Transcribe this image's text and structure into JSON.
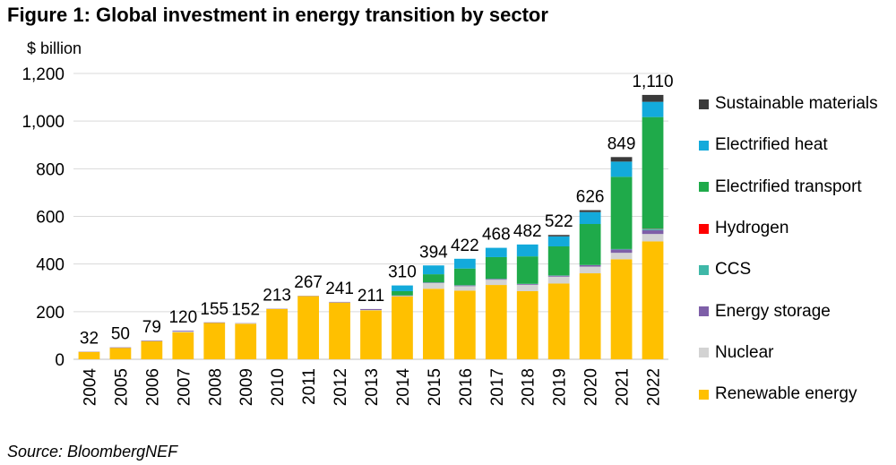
{
  "figure_title": "Figure 1: Global investment in energy transition by sector",
  "unit_label": "$ billion",
  "source": "Source: BloombergNEF",
  "colors": {
    "renewable": "#FFC000",
    "nuclear": "#D3D3D3",
    "storage": "#7E5FA8",
    "ccs": "#3FB8A8",
    "hydrogen": "#FF0000",
    "transport": "#1FAA4A",
    "heat": "#13AADB",
    "materials": "#3A3A3A"
  },
  "chart_data": {
    "type": "bar",
    "stacked": true,
    "title": "Figure 1: Global investment in energy transition by sector",
    "ylabel": "$ billion",
    "xlabel": "",
    "ylim": [
      0,
      1200
    ],
    "yticks": [
      0,
      200,
      400,
      600,
      800,
      1000,
      1200
    ],
    "ytick_labels": [
      "0",
      "200",
      "400",
      "600",
      "800",
      "1,000",
      "1,200"
    ],
    "grid": "horizontal",
    "legend_position": "right",
    "categories": [
      "2004",
      "2005",
      "2006",
      "2007",
      "2008",
      "2009",
      "2010",
      "2011",
      "2012",
      "2013",
      "2014",
      "2015",
      "2016",
      "2017",
      "2018",
      "2019",
      "2020",
      "2021",
      "2022"
    ],
    "totals": [
      32,
      50,
      79,
      120,
      155,
      152,
      213,
      267,
      241,
      211,
      310,
      394,
      422,
      468,
      482,
      522,
      626,
      849,
      1110
    ],
    "total_labels": [
      "32",
      "50",
      "79",
      "120",
      "155",
      "152",
      "213",
      "267",
      "241",
      "211",
      "310",
      "394",
      "422",
      "468",
      "482",
      "522",
      "626",
      "849",
      "1,110"
    ],
    "series": [
      {
        "name": "Renewable energy",
        "color_key": "renewable",
        "values": [
          31,
          48,
          76,
          113,
          153,
          149,
          211,
          265,
          238,
          205,
          264,
          296,
          288,
          312,
          286,
          318,
          361,
          420,
          495
        ]
      },
      {
        "name": "Nuclear",
        "color_key": "nuclear",
        "values": [
          0,
          0,
          1,
          4,
          0,
          2,
          1,
          1,
          1,
          2,
          2,
          24,
          19,
          22,
          27,
          29,
          28,
          27,
          31
        ]
      },
      {
        "name": "Energy storage",
        "color_key": "storage",
        "values": [
          1,
          2,
          2,
          3,
          2,
          1,
          1,
          1,
          2,
          4,
          2,
          2,
          3,
          3,
          3,
          4,
          6,
          14,
          16
        ]
      },
      {
        "name": "CCS",
        "color_key": "ccs",
        "values": [
          0,
          0,
          0,
          0,
          0,
          0,
          0,
          0,
          0,
          0,
          0,
          1,
          1,
          1,
          1,
          1,
          1,
          2,
          6
        ]
      },
      {
        "name": "Hydrogen",
        "color_key": "hydrogen",
        "values": [
          0,
          0,
          0,
          0,
          0,
          0,
          0,
          0,
          0,
          0,
          0,
          0,
          0,
          0,
          0,
          0,
          0,
          0,
          1
        ]
      },
      {
        "name": "Electrified transport",
        "color_key": "transport",
        "values": [
          0,
          0,
          0,
          0,
          0,
          0,
          0,
          0,
          0,
          0,
          18,
          34,
          70,
          91,
          115,
          122,
          172,
          303,
          468
        ]
      },
      {
        "name": "Electrified heat",
        "color_key": "heat",
        "values": [
          0,
          0,
          0,
          0,
          0,
          0,
          0,
          0,
          0,
          0,
          24,
          37,
          41,
          39,
          50,
          42,
          50,
          64,
          64
        ]
      },
      {
        "name": "Sustainable materials",
        "color_key": "materials",
        "values": [
          0,
          0,
          0,
          0,
          0,
          0,
          0,
          0,
          0,
          0,
          0,
          0,
          0,
          0,
          0,
          6,
          8,
          19,
          29
        ]
      }
    ]
  }
}
